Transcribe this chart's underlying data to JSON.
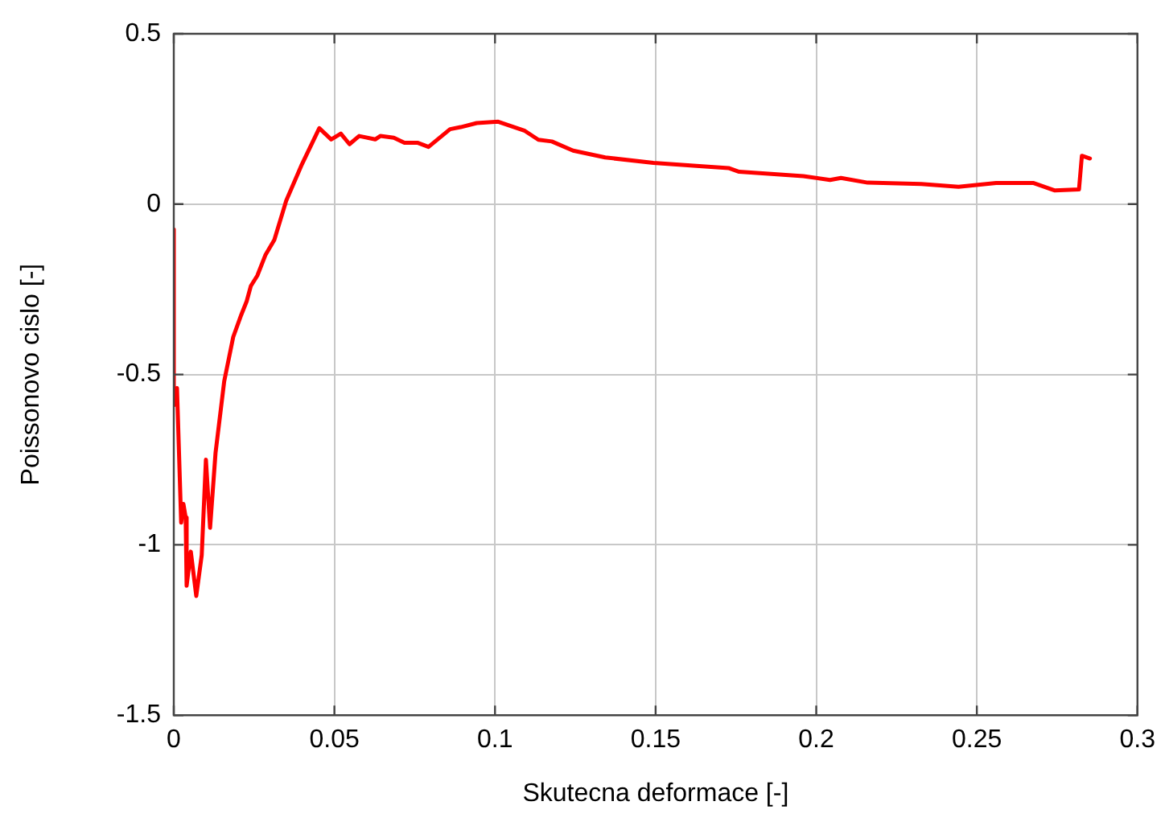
{
  "chart_data": {
    "type": "line",
    "xlabel": "Skutecna deformace [-]",
    "ylabel": "Poissonovo cislo [-]",
    "xlim": [
      0,
      0.3
    ],
    "xticks": [
      0,
      0.05,
      0.1,
      0.15,
      0.2,
      0.25,
      0.3
    ],
    "ylim": [
      -1.5,
      0.5
    ],
    "yticks": [
      -1.5,
      -1,
      -0.5,
      0,
      0.5
    ],
    "grid": true,
    "marker": "none",
    "line_style": "solid",
    "series": [
      {
        "color": "#ff0000",
        "x": [
          0,
          0,
          0.001,
          0.0023,
          0.003,
          0.0037,
          0.004,
          0.0053,
          0.007,
          0.0087,
          0.01,
          0.0113,
          0.013,
          0.0157,
          0.0185,
          0.021,
          0.0227,
          0.024,
          0.026,
          0.0285,
          0.0313,
          0.035,
          0.0397,
          0.0453,
          0.049,
          0.052,
          0.0547,
          0.0577,
          0.0627,
          0.0643,
          0.0685,
          0.0718,
          0.076,
          0.0793,
          0.086,
          0.0893,
          0.0943,
          0.101,
          0.1093,
          0.1135,
          0.1177,
          0.1243,
          0.1343,
          0.1493,
          0.1627,
          0.1727,
          0.176,
          0.196,
          0.2043,
          0.2077,
          0.216,
          0.2327,
          0.2443,
          0.256,
          0.2677,
          0.2743,
          0.2818,
          0.2827,
          0.2852
        ],
        "values": [
          -0.074,
          -0.59,
          -0.54,
          -0.935,
          -0.88,
          -0.92,
          -1.12,
          -1.02,
          -1.15,
          -1.03,
          -0.75,
          -0.95,
          -0.73,
          -0.52,
          -0.39,
          -0.325,
          -0.285,
          -0.24,
          -0.21,
          -0.15,
          -0.105,
          0.01,
          0.113,
          0.223,
          0.19,
          0.207,
          0.176,
          0.2,
          0.19,
          0.2,
          0.195,
          0.18,
          0.18,
          0.168,
          0.22,
          0.226,
          0.238,
          0.242,
          0.215,
          0.189,
          0.184,
          0.157,
          0.137,
          0.121,
          0.112,
          0.106,
          0.095,
          0.082,
          0.071,
          0.077,
          0.063,
          0.059,
          0.051,
          0.062,
          0.062,
          0.04,
          0.043,
          0.142,
          0.134
        ]
      }
    ]
  }
}
